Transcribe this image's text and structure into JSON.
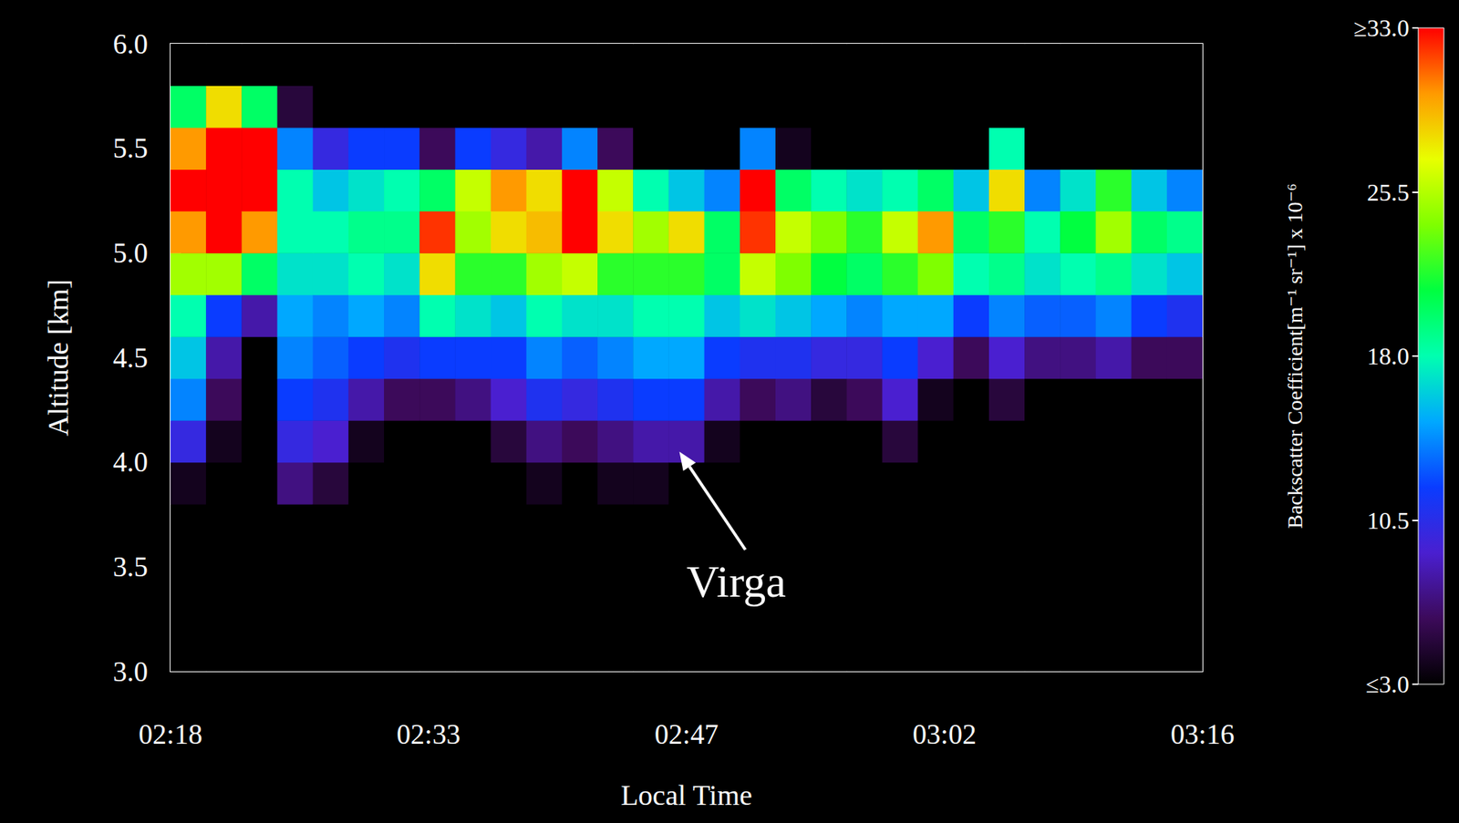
{
  "chart_data": {
    "type": "heatmap",
    "x_label": "Local Time",
    "y_label": "Altitude [km]",
    "grid": false,
    "xlim": [
      138,
      196
    ],
    "xticks": [
      {
        "value": 138,
        "label": "02:18"
      },
      {
        "value": 152.5,
        "label": "02:33"
      },
      {
        "value": 167,
        "label": "02:47"
      },
      {
        "value": 181.5,
        "label": "03:02"
      },
      {
        "value": 196,
        "label": "03:16"
      }
    ],
    "ylim": [
      3,
      6
    ],
    "yticks": [
      {
        "value": 3,
        "label": "3.0"
      },
      {
        "value": 3.5,
        "label": "3.5"
      },
      {
        "value": 4,
        "label": "4.0"
      },
      {
        "value": 4.5,
        "label": "4.5"
      },
      {
        "value": 5,
        "label": "5.0"
      },
      {
        "value": 5.5,
        "label": "5.5"
      },
      {
        "value": 6,
        "label": "6.0"
      }
    ],
    "cells": {
      "x_bins": [
        138,
        140,
        142,
        144,
        146,
        148,
        150,
        152,
        154,
        156,
        158,
        160,
        162,
        164,
        166,
        168,
        170,
        172,
        174,
        176,
        178,
        180,
        182,
        184,
        186,
        188,
        190,
        192,
        194,
        196
      ],
      "y_bins": [
        3.0,
        3.2,
        3.4,
        3.6,
        3.8,
        4.0,
        4.2,
        4.4,
        4.6,
        4.8,
        5.0,
        5.2,
        5.4,
        5.6,
        5.8,
        6.0
      ],
      "values": [
        [
          2,
          2,
          2,
          2,
          4,
          10,
          14,
          16,
          18,
          25,
          30,
          33,
          30,
          20,
          3
        ],
        [
          2,
          2,
          2,
          2,
          2,
          4,
          6,
          8,
          12,
          25,
          33,
          33,
          33,
          28,
          3
        ],
        [
          2,
          2,
          2,
          2,
          2,
          2,
          2,
          3,
          8,
          20,
          30,
          33,
          33,
          20,
          3
        ],
        [
          2,
          2,
          2,
          3,
          7,
          10,
          12,
          14,
          15,
          17,
          18,
          18,
          14,
          5,
          2
        ],
        [
          2,
          2,
          2,
          2,
          5,
          9,
          11,
          13,
          14,
          17,
          18,
          16,
          10,
          3,
          2
        ],
        [
          2,
          2,
          2,
          2,
          2,
          4,
          8,
          12,
          15,
          18,
          19,
          17,
          12,
          2,
          2
        ],
        [
          2,
          2,
          2,
          2,
          2,
          3,
          6,
          11,
          14,
          17,
          19,
          18,
          12,
          2,
          2
        ],
        [
          2,
          2,
          2,
          2,
          2,
          3,
          6,
          12,
          18,
          28,
          32,
          20,
          6,
          2,
          2
        ],
        [
          2,
          2,
          2,
          2,
          2,
          3,
          7,
          12,
          17,
          22,
          25,
          26,
          12,
          2,
          2
        ],
        [
          2,
          2,
          2,
          2,
          2,
          5,
          9,
          12,
          16,
          22,
          28,
          30,
          10,
          2,
          2
        ],
        [
          2,
          2,
          2,
          2,
          4,
          7,
          11,
          14,
          18,
          25,
          29,
          28,
          8,
          2,
          2
        ],
        [
          2,
          2,
          2,
          2,
          3,
          6,
          10,
          13,
          17,
          26,
          33,
          33,
          14,
          2,
          2
        ],
        [
          2,
          2,
          2,
          2,
          4,
          7,
          11,
          14,
          17,
          22,
          28,
          26,
          6,
          2,
          2
        ],
        [
          2,
          2,
          2,
          2,
          4,
          8,
          12,
          15,
          18,
          22,
          25,
          18,
          3,
          2,
          2
        ],
        [
          2,
          2,
          2,
          2,
          3,
          8,
          12,
          15,
          18,
          22,
          28,
          16,
          3,
          2,
          2
        ],
        [
          2,
          2,
          2,
          2,
          2,
          4,
          8,
          12,
          16,
          20,
          20,
          14,
          3,
          2,
          2
        ],
        [
          2,
          2,
          2,
          2,
          2,
          3,
          6,
          11,
          17,
          26,
          32,
          33,
          14,
          2,
          2
        ],
        [
          2,
          2,
          2,
          2,
          2,
          3,
          7,
          11,
          16,
          24,
          26,
          20,
          4,
          2,
          2
        ],
        [
          2,
          2,
          2,
          2,
          2,
          2,
          5,
          10,
          15,
          21,
          24,
          18,
          3,
          2,
          2
        ],
        [
          2,
          2,
          2,
          2,
          2,
          3,
          6,
          10,
          14,
          20,
          22,
          17,
          2,
          2,
          2
        ],
        [
          2,
          2,
          2,
          2,
          2,
          5,
          9,
          12,
          15,
          22,
          26,
          18,
          2,
          2,
          2
        ],
        [
          2,
          2,
          2,
          2,
          2,
          2,
          4,
          9,
          15,
          24,
          30,
          20,
          2,
          2,
          2
        ],
        [
          2,
          2,
          2,
          2,
          2,
          2,
          3,
          6,
          12,
          18,
          20,
          16,
          3,
          2,
          2
        ],
        [
          2,
          2,
          2,
          2,
          2,
          2,
          5,
          9,
          14,
          19,
          22,
          28,
          18,
          2,
          2
        ],
        [
          2,
          2,
          2,
          2,
          2,
          2,
          3,
          7,
          13,
          17,
          18,
          14,
          3,
          2,
          2
        ],
        [
          2,
          2,
          2,
          2,
          2,
          2,
          3,
          7,
          13,
          18,
          21,
          17,
          3,
          2,
          2
        ],
        [
          2,
          2,
          2,
          2,
          2,
          2,
          2,
          8,
          14,
          19,
          25,
          22,
          2,
          2,
          2
        ],
        [
          2,
          2,
          2,
          2,
          2,
          2,
          2,
          6,
          12,
          17,
          20,
          16,
          2,
          2,
          2
        ],
        [
          2,
          2,
          2,
          2,
          2,
          2,
          2,
          6,
          11,
          16,
          19,
          14,
          2,
          2,
          2
        ]
      ]
    },
    "colorbar": {
      "label": "Backscatter Coefficient[m⁻¹ sr⁻¹] x 10⁻⁶",
      "range": [
        3,
        33
      ],
      "ticks": [
        {
          "value": 3,
          "label": "≤3.0"
        },
        10.5,
        {
          "value": 18,
          "label": "18.0"
        },
        25.5,
        {
          "value": 33,
          "label": "≥33.0"
        }
      ]
    },
    "annotations": [
      {
        "text": "Virga",
        "x": 169.8,
        "y": 3.43,
        "arrow_x": 166.6,
        "arrow_y": 4.05
      }
    ]
  }
}
